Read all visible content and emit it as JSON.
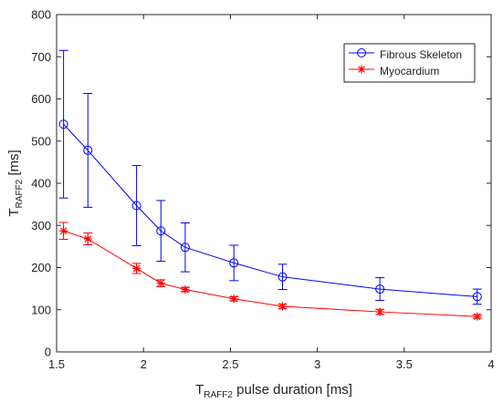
{
  "chart_data": {
    "type": "line",
    "title": "",
    "xlabel": {
      "main": "T",
      "sub": "RAFF2",
      "rest": " pulse duration [ms]"
    },
    "ylabel": {
      "main": "T",
      "sub": "RAFF2",
      "rest": " [ms]"
    },
    "xlim": [
      1.5,
      4
    ],
    "ylim": [
      0,
      800
    ],
    "xticks": [
      1.5,
      2,
      2.5,
      3,
      3.5,
      4
    ],
    "xtick_labels": [
      "1.5",
      "2",
      "2.5",
      "3",
      "3.5",
      "4"
    ],
    "yticks": [
      0,
      100,
      200,
      300,
      400,
      500,
      600,
      700,
      800
    ],
    "ytick_labels": [
      "0",
      "100",
      "200",
      "300",
      "400",
      "500",
      "600",
      "700",
      "800"
    ],
    "grid": false,
    "legend": {
      "position": "top-right",
      "entries": [
        "Fibrous Skeleton",
        "Myocardium"
      ]
    },
    "x": [
      1.54,
      1.68,
      1.96,
      2.1,
      2.24,
      2.52,
      2.8,
      3.36,
      3.92
    ],
    "series": [
      {
        "name": "Fibrous Skeleton",
        "color": "#0000ff",
        "marker": "circle",
        "values": [
          540,
          478,
          347,
          287,
          248,
          211,
          178,
          149,
          131
        ],
        "error": [
          175,
          135,
          95,
          72,
          58,
          42,
          30,
          27,
          18
        ]
      },
      {
        "name": "Myocardium",
        "color": "#ff0000",
        "marker": "asterisk",
        "values": [
          287,
          268,
          198,
          163,
          148,
          126,
          108,
          95,
          84
        ],
        "error": [
          20,
          14,
          12,
          8,
          5,
          5,
          5,
          6,
          4
        ]
      }
    ]
  }
}
